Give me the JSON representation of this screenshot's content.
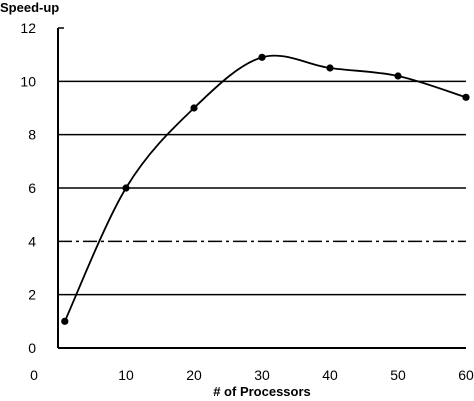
{
  "chart_data": {
    "type": "line",
    "title": "",
    "xlabel": "# of Processors",
    "ylabel": "Speed-up",
    "xlim": [
      0,
      60
    ],
    "ylim": [
      0,
      12
    ],
    "xticks": [
      0,
      10,
      20,
      30,
      40,
      50,
      60
    ],
    "yticks": [
      0,
      2,
      4,
      6,
      8,
      10,
      12
    ],
    "grid": "horizontal",
    "legend": "none",
    "series": [
      {
        "x": [
          1,
          10,
          20,
          30,
          40,
          50,
          60
        ],
        "y": [
          1.0,
          6.0,
          9.0,
          10.9,
          10.5,
          10.2,
          9.4
        ]
      }
    ],
    "colors": {
      "line": "#000000",
      "grid": "#000000",
      "background": "#ffffff"
    }
  }
}
